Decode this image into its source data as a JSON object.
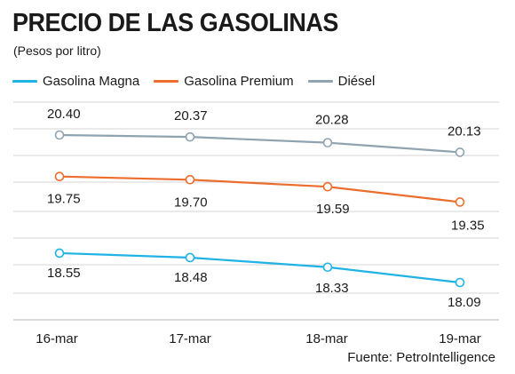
{
  "header": {
    "title": "PRECIO DE LAS GASOLINAS",
    "subtitle": "(Pesos por litro)"
  },
  "source": "Fuente: PetroIntelligence",
  "chart_data": {
    "type": "line",
    "title": "PRECIO DE LAS GASOLINAS",
    "subtitle": "(Pesos por litro)",
    "ylabel": "",
    "xlabel": "",
    "categories": [
      "16-mar",
      "17-mar",
      "18-mar",
      "19-mar"
    ],
    "series": [
      {
        "name": "Gasolina Magna",
        "color": "#1fb3e5",
        "values": [
          18.55,
          18.48,
          18.33,
          18.09
        ],
        "labels": [
          "18.55",
          "18.48",
          "18.33",
          "18.09"
        ]
      },
      {
        "name": "Gasolina Premium",
        "color": "#ec6d2c",
        "values": [
          19.75,
          19.7,
          19.59,
          19.35
        ],
        "labels": [
          "19.75",
          "19.70",
          "19.59",
          "19.35"
        ]
      },
      {
        "name": "Diésel",
        "color": "#8fa3b1",
        "values": [
          20.4,
          20.37,
          20.28,
          20.13
        ],
        "labels": [
          "20.40",
          "20.37",
          "20.28",
          "20.13"
        ]
      }
    ],
    "grid": true,
    "legend": "top-left",
    "ylim": [
      17.7,
      20.4
    ]
  }
}
